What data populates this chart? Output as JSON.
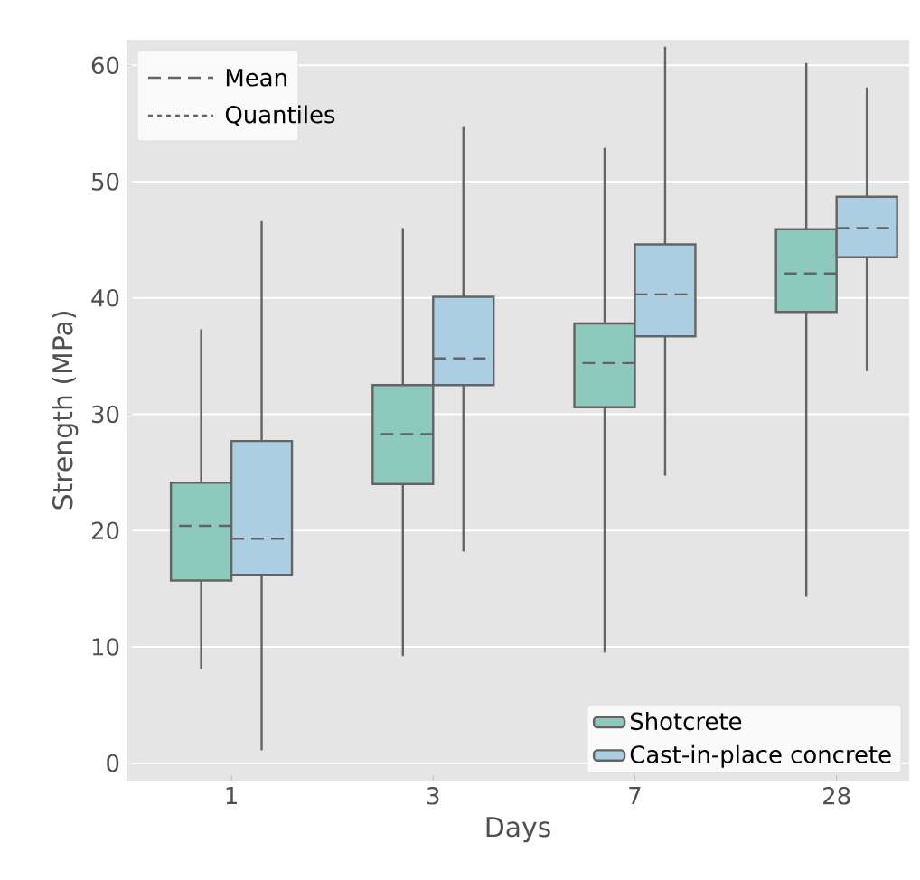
{
  "chart_data": {
    "type": "box",
    "xlabel": "Days",
    "ylabel": "Strength (MPa)",
    "categories": [
      "1",
      "3",
      "7",
      "28"
    ],
    "ylim": [
      -1.5,
      62.2
    ],
    "yticks": [
      0,
      10,
      20,
      30,
      40,
      50,
      60
    ],
    "grid": "y",
    "legend": "bottom right",
    "annotations": [
      "Mean",
      "Quantiles"
    ],
    "series": [
      {
        "name": "Shotcrete",
        "color": "#8ec9be",
        "boxes": [
          {
            "low": 8.1,
            "q1": 15.7,
            "median": 20.4,
            "q3": 24.1,
            "high": 37.3
          },
          {
            "low": 9.2,
            "q1": 24.0,
            "median": 28.3,
            "q3": 32.5,
            "high": 46.0
          },
          {
            "low": 9.5,
            "q1": 30.6,
            "median": 34.4,
            "q3": 37.8,
            "high": 52.9
          },
          {
            "low": 14.3,
            "q1": 38.8,
            "median": 42.1,
            "q3": 45.9,
            "high": 60.2
          }
        ]
      },
      {
        "name": "Cast-in-place concrete",
        "color": "#acceE2",
        "boxes": [
          {
            "low": 1.1,
            "q1": 16.2,
            "median": 19.3,
            "q3": 27.7,
            "high": 46.6
          },
          {
            "low": 18.2,
            "q1": 32.5,
            "median": 34.8,
            "q3": 40.1,
            "high": 54.7
          },
          {
            "low": 24.7,
            "q1": 36.7,
            "median": 40.3,
            "q3": 44.6,
            "high": 61.6
          },
          {
            "low": 33.7,
            "q1": 43.5,
            "median": 46.0,
            "q3": 48.7,
            "high": 58.1
          }
        ]
      }
    ]
  }
}
